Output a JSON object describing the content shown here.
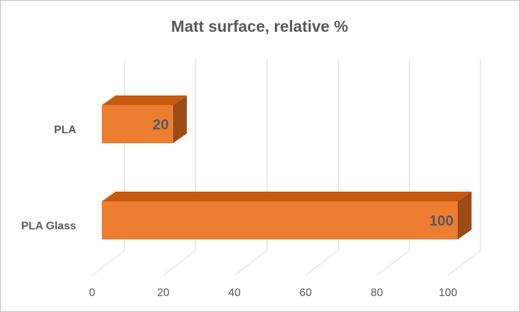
{
  "chart_data": {
    "type": "bar",
    "orientation": "horizontal",
    "title": "Matt surface, relative %",
    "categories": [
      "PLA",
      "PLA Glass"
    ],
    "values": [
      20,
      100
    ],
    "color": "#ed7d31",
    "xlim": [
      0,
      100
    ],
    "xticks": [
      0,
      20,
      40,
      60,
      80,
      100
    ],
    "grid": true
  }
}
